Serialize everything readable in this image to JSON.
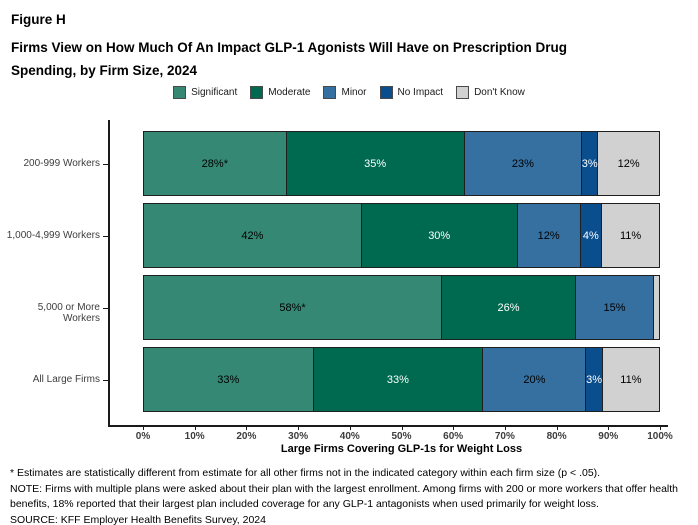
{
  "figure": {
    "label": "Figure H",
    "title": "Firms View on How Much Of An Impact GLP-1 Agonists Will Have on Prescription Drug Spending, by Firm Size, 2024"
  },
  "chart_data": {
    "type": "bar",
    "orientation": "horizontal",
    "stacked": true,
    "grid": false,
    "legend_position": "top",
    "categories": [
      "200-999 Workers",
      "1,000-4,999 Workers",
      "5,000 or More Workers",
      "All Large Firms"
    ],
    "series": [
      {
        "name": "Significant",
        "color": "#358874",
        "text_color": "#000000",
        "values": [
          28,
          42,
          58,
          33
        ],
        "labels": [
          "28%*",
          "42%",
          "58%*",
          "33%"
        ]
      },
      {
        "name": "Moderate",
        "color": "#006A50",
        "text_color": "#ffffff",
        "values": [
          35,
          30,
          26,
          33
        ],
        "labels": [
          "35%",
          "30%",
          "26%",
          "33%"
        ]
      },
      {
        "name": "Minor",
        "color": "#3670A0",
        "text_color": "#000000",
        "values": [
          23,
          12,
          15,
          20
        ],
        "labels": [
          "23%",
          "12%",
          "15%",
          "20%"
        ]
      },
      {
        "name": "No Impact",
        "color": "#0B4E8E",
        "text_color": "#ffffff",
        "values": [
          3,
          4,
          0,
          3
        ],
        "labels": [
          "3%",
          "4%",
          "",
          "3%"
        ]
      },
      {
        "name": "Don't Know",
        "color": "#D1D1D1",
        "text_color": "#000000",
        "values": [
          12,
          11,
          1,
          11
        ],
        "labels": [
          "12%",
          "11%",
          "",
          "11%"
        ]
      }
    ],
    "xlabel": "Large Firms Covering GLP-1s for Weight Loss",
    "x_ticks": [
      "0%",
      "10%",
      "20%",
      "30%",
      "40%",
      "50%",
      "60%",
      "70%",
      "80%",
      "90%",
      "100%"
    ],
    "xlim": [
      0,
      100
    ]
  },
  "footnotes": [
    "* Estimates are statistically different from estimate for all other firms not in the indicated category within each firm size (p < .05).",
    "NOTE: Firms with multiple plans were asked about their plan with the largest enrollment.  Among firms with 200 or more workers that offer health benefits, 18% reported that their largest plan included coverage for any GLP-1 antagonists when used primarily for weight loss.",
    "SOURCE: KFF Employer Health Benefits Survey, 2024"
  ]
}
